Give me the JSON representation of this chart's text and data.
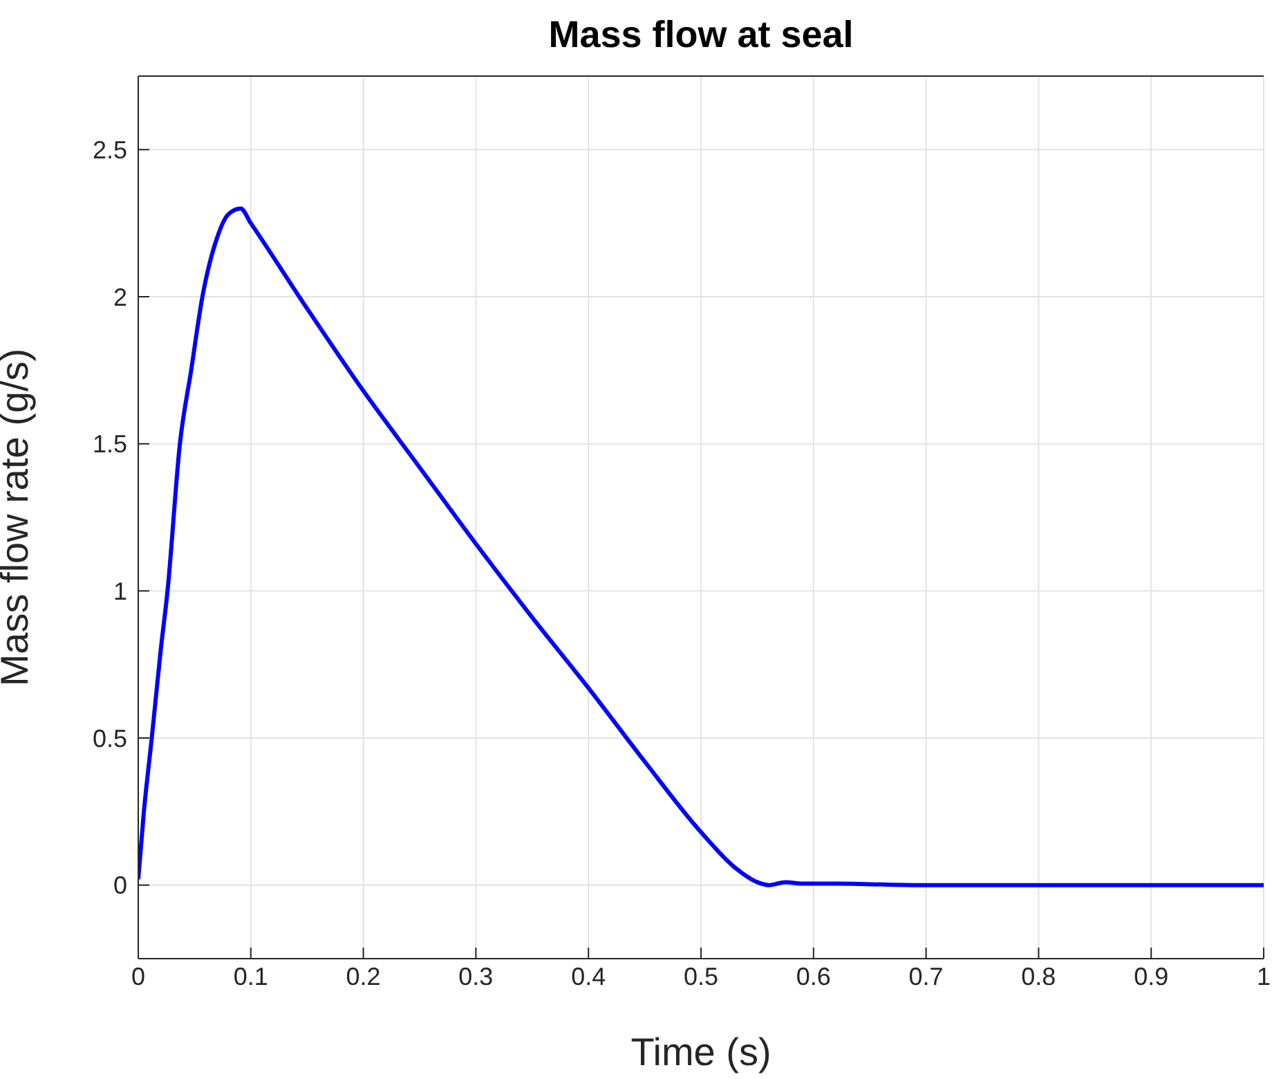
{
  "chart_data": {
    "type": "line",
    "title": "Mass flow at seal",
    "xlabel": "Time (s)",
    "ylabel": "Mass flow rate (g/s)",
    "x": [
      0,
      0.005,
      0.012,
      0.02,
      0.026,
      0.037,
      0.047,
      0.057,
      0.07,
      0.08,
      0.091,
      0.1,
      0.15,
      0.2,
      0.25,
      0.3,
      0.35,
      0.4,
      0.45,
      0.5,
      0.53,
      0.55,
      0.56,
      0.575,
      0.59,
      0.6,
      0.62,
      0.65,
      0.7,
      0.8,
      0.9,
      1
    ],
    "series": [
      {
        "color": "#0000ff",
        "values": [
          0.02,
          0.25,
          0.5,
          0.8,
          1,
          1.5,
          1.75,
          2,
          2.2,
          2.28,
          2.3,
          2.25,
          1.96,
          1.68,
          1.42,
          1.16,
          0.91,
          0.67,
          0.42,
          0.18,
          0.06,
          0.01,
          0,
          0.01,
          0.005,
          0.005,
          0.005,
          0.003,
          0,
          0,
          0,
          0
        ]
      }
    ],
    "xlim": [
      0,
      1
    ],
    "xticks": [
      0,
      0.1,
      0.2,
      0.3,
      0.4,
      0.5,
      0.6,
      0.7,
      0.8,
      0.9,
      1
    ],
    "ylim": [
      -0.25,
      2.75
    ],
    "yticks": [
      0,
      0.5,
      1,
      1.5,
      2,
      2.5
    ],
    "grid": true,
    "legend": false,
    "marker": "none",
    "line_style": "solid"
  }
}
